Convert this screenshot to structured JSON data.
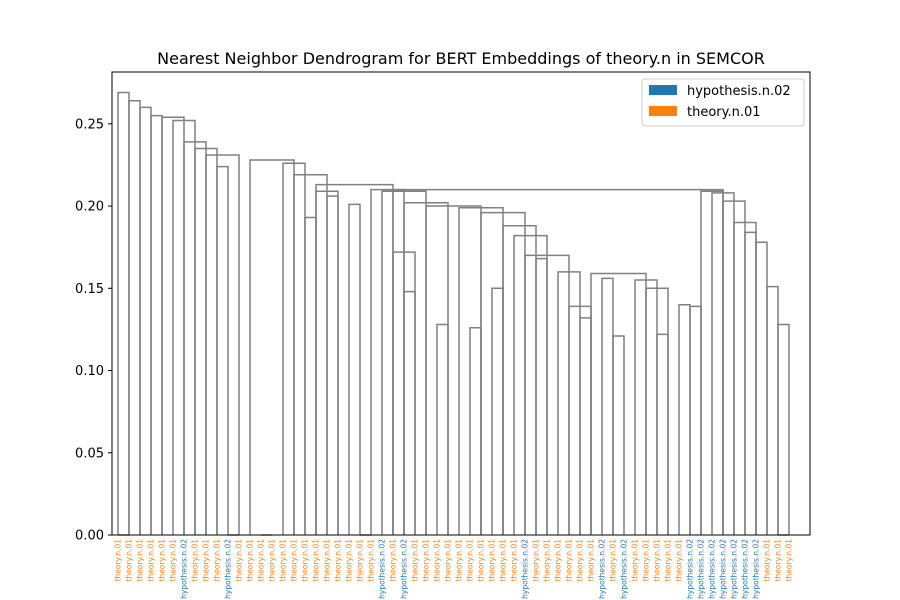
{
  "chart_data": {
    "type": "dendrogram",
    "title": "Nearest Neighbor Dendrogram for BERT Embeddings of theory.n in SEMCOR",
    "xlabel": "",
    "ylabel": "",
    "ylim": [
      0,
      0.2815
    ],
    "yticks": [
      "0.00",
      "0.05",
      "0.10",
      "0.15",
      "0.20",
      "0.25"
    ],
    "grid": false,
    "link_color": "#808080",
    "legend": {
      "placement": "top-right",
      "entries": [
        {
          "label": "hypothesis.n.02",
          "color": "#1f77b4"
        },
        {
          "label": "theory.n.01",
          "color": "#ff7f0e"
        }
      ]
    },
    "class_colors": {
      "hypothesis.n.02": "#1f77b4",
      "theory.n.01": "#ff7f0e"
    },
    "leaves": [
      "theory.n.01",
      "theory.n.01",
      "theory.n.01",
      "theory.n.01",
      "theory.n.01",
      "theory.n.01",
      "hypothesis.n.02",
      "theory.n.01",
      "theory.n.01",
      "theory.n.01",
      "hypothesis.n.02",
      "theory.n.01",
      "theory.n.01",
      "theory.n.01",
      "theory.n.01",
      "theory.n.01",
      "theory.n.01",
      "theory.n.01",
      "theory.n.01",
      "theory.n.01",
      "theory.n.01",
      "theory.n.01",
      "theory.n.01",
      "theory.n.01",
      "hypothesis.n.02",
      "theory.n.01",
      "hypothesis.n.02",
      "theory.n.01",
      "theory.n.01",
      "theory.n.01",
      "theory.n.01",
      "theory.n.01",
      "theory.n.01",
      "theory.n.01",
      "theory.n.01",
      "theory.n.01",
      "theory.n.01",
      "hypothesis.n.02",
      "theory.n.01",
      "theory.n.01",
      "theory.n.01",
      "theory.n.01",
      "theory.n.01",
      "theory.n.01",
      "hypothesis.n.02",
      "theory.n.01",
      "hypothesis.n.02",
      "theory.n.01",
      "theory.n.01",
      "theory.n.01",
      "theory.n.01",
      "theory.n.01",
      "hypothesis.n.02",
      "hypothesis.n.02",
      "hypothesis.n.02",
      "hypothesis.n.02",
      "hypothesis.n.02",
      "hypothesis.n.02",
      "hypothesis.n.02",
      "theory.n.01",
      "theory.n.01",
      "theory.n.01"
    ],
    "links": [
      {
        "a": 1,
        "b": 2,
        "h": 0.0
      },
      {
        "a": 11,
        "b": 12,
        "h": 0.0
      },
      {
        "a": 14,
        "b": 15,
        "h": 0.0
      },
      {
        "a": 23,
        "b": 24,
        "h": 0.0
      },
      {
        "a": 61,
        "b": 62,
        "h": 0.0
      },
      {
        "a": 18,
        "b": 19,
        "h": 0.193
      },
      {
        "a": 20,
        "b": 21,
        "h": 0.206
      },
      {
        "a": 22,
        "b": 23,
        "h": 0.201
      },
      {
        "a": 10,
        "b": 11,
        "h": 0.224
      },
      {
        "a": 27,
        "b": 28,
        "h": 0.148
      },
      {
        "a": 30,
        "b": 31,
        "h": 0.128
      },
      {
        "a": 33,
        "b": 34,
        "h": 0.126
      },
      {
        "a": 35,
        "b": 36,
        "h": 0.15
      },
      {
        "a": 39,
        "b": 40,
        "h": 0.168
      },
      {
        "a": 43,
        "b": 44,
        "h": 0.132
      },
      {
        "a": 46,
        "b": 47,
        "h": 0.121
      },
      {
        "a": 50,
        "b": 51,
        "h": 0.122
      },
      {
        "a": 52,
        "b": 53,
        "h": 0.14
      },
      {
        "a": 53,
        "b": 54,
        "h": 0.139
      },
      {
        "a": 58,
        "b": 59,
        "h": 0.184
      },
      {
        "a": 61,
        "b": 62,
        "h": 0.128
      },
      {
        "a": 60,
        "b": 61,
        "h": 0.151
      },
      {
        "a": 59,
        "b": 60,
        "h": 0.178
      },
      {
        "a": 57,
        "b": 59,
        "h": 0.19
      },
      {
        "a": 56,
        "b": 58,
        "h": 0.203
      },
      {
        "a": 55,
        "b": 57,
        "h": 0.208
      },
      {
        "a": 54,
        "b": 56,
        "h": 0.209
      },
      {
        "a": 19,
        "b": 21,
        "h": 0.209
      },
      {
        "a": 17,
        "b": 20,
        "h": 0.219
      },
      {
        "a": 16,
        "b": 18,
        "h": 0.226
      },
      {
        "a": 26,
        "b": 28,
        "h": 0.172
      },
      {
        "a": 42,
        "b": 44,
        "h": 0.139
      },
      {
        "a": 41,
        "b": 43,
        "h": 0.16
      },
      {
        "a": 45,
        "b": 46,
        "h": 0.156
      },
      {
        "a": 49,
        "b": 51,
        "h": 0.15
      },
      {
        "a": 48,
        "b": 50,
        "h": 0.155
      },
      {
        "a": 44,
        "b": 49,
        "h": 0.159
      },
      {
        "a": 38,
        "b": 42,
        "h": 0.17
      },
      {
        "a": 37,
        "b": 40,
        "h": 0.182
      },
      {
        "a": 36,
        "b": 39,
        "h": 0.188
      },
      {
        "a": 34,
        "b": 38,
        "h": 0.196
      },
      {
        "a": 32,
        "b": 36,
        "h": 0.199
      },
      {
        "a": 29,
        "b": 34,
        "h": 0.2
      },
      {
        "a": 27,
        "b": 31,
        "h": 0.202
      },
      {
        "a": 25,
        "b": 29,
        "h": 0.209
      },
      {
        "a": 24,
        "b": 27,
        "h": 0.21
      },
      {
        "a": 26,
        "b": 56,
        "h": 0.21
      },
      {
        "a": 19,
        "b": 26,
        "h": 0.213
      },
      {
        "a": 13,
        "b": 17,
        "h": 0.228
      },
      {
        "a": 9,
        "b": 12,
        "h": 0.231
      },
      {
        "a": 8,
        "b": 10,
        "h": 0.235
      },
      {
        "a": 7,
        "b": 9,
        "h": 0.239
      },
      {
        "a": 6,
        "b": 8,
        "h": 0.252
      },
      {
        "a": 5,
        "b": 7,
        "h": 0.254
      },
      {
        "a": 4,
        "b": 5,
        "h": 0.255
      },
      {
        "a": 3,
        "b": 4,
        "h": 0.26
      },
      {
        "a": 2,
        "b": 3,
        "h": 0.264
      },
      {
        "a": 1,
        "b": 2,
        "h": 0.269
      }
    ]
  }
}
